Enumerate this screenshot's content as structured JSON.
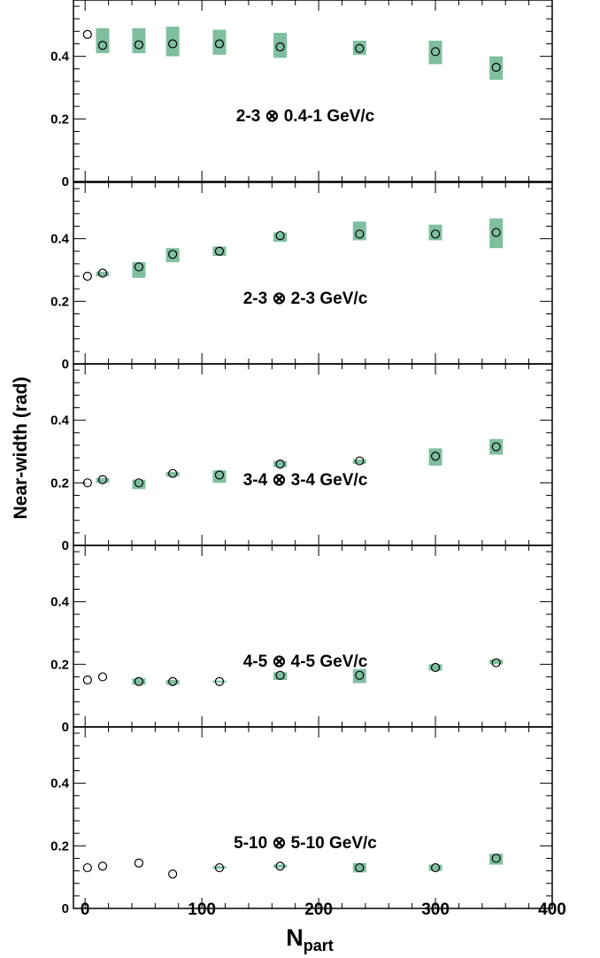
{
  "chart_data": [
    {
      "type": "scatter",
      "panel_label": "2-3 ⊗ 0.4-1 GeV/c",
      "ylim": [
        0,
        0.58
      ],
      "yticks": [
        "0",
        "0.2",
        "0.4"
      ],
      "points": [
        {
          "x": 2,
          "y": 0.47
        },
        {
          "x": 15,
          "y": 0.435,
          "sys_low": 0.41,
          "sys_high": 0.49
        },
        {
          "x": 46,
          "y": 0.437,
          "sys_low": 0.41,
          "sys_high": 0.49
        },
        {
          "x": 75,
          "y": 0.44,
          "sys_low": 0.4,
          "sys_high": 0.495
        },
        {
          "x": 115,
          "y": 0.44,
          "sys_low": 0.405,
          "sys_high": 0.485
        },
        {
          "x": 167,
          "y": 0.43,
          "sys_low": 0.395,
          "sys_high": 0.475
        },
        {
          "x": 235,
          "y": 0.425,
          "sys_low": 0.405,
          "sys_high": 0.45
        },
        {
          "x": 300,
          "y": 0.415,
          "sys_low": 0.375,
          "sys_high": 0.45
        },
        {
          "x": 352,
          "y": 0.365,
          "sys_low": 0.325,
          "sys_high": 0.4
        }
      ]
    },
    {
      "type": "scatter",
      "panel_label": "2-3 ⊗ 2-3 GeV/c",
      "ylim": [
        0,
        0.58
      ],
      "yticks": [
        "0",
        "0.2",
        "0.4"
      ],
      "points": [
        {
          "x": 2,
          "y": 0.28
        },
        {
          "x": 15,
          "y": 0.29,
          "sys_low": 0.28,
          "sys_high": 0.295
        },
        {
          "x": 46,
          "y": 0.31,
          "sys_low": 0.275,
          "sys_high": 0.325
        },
        {
          "x": 75,
          "y": 0.35,
          "sys_low": 0.325,
          "sys_high": 0.37
        },
        {
          "x": 115,
          "y": 0.36,
          "sys_low": 0.345,
          "sys_high": 0.375
        },
        {
          "x": 167,
          "y": 0.41,
          "sys_low": 0.39,
          "sys_high": 0.42
        },
        {
          "x": 235,
          "y": 0.415,
          "sys_low": 0.395,
          "sys_high": 0.455
        },
        {
          "x": 300,
          "y": 0.415,
          "sys_low": 0.395,
          "sys_high": 0.445
        },
        {
          "x": 352,
          "y": 0.42,
          "sys_low": 0.37,
          "sys_high": 0.465
        }
      ]
    },
    {
      "type": "scatter",
      "panel_label": "3-4 ⊗ 3-4 GeV/c",
      "ylim": [
        0,
        0.58
      ],
      "yticks": [
        "0",
        "0.2",
        "0.4"
      ],
      "points": [
        {
          "x": 2,
          "y": 0.2
        },
        {
          "x": 15,
          "y": 0.21,
          "sys_low": 0.2,
          "sys_high": 0.215
        },
        {
          "x": 46,
          "y": 0.2,
          "sys_low": 0.18,
          "sys_high": 0.21
        },
        {
          "x": 75,
          "y": 0.23,
          "sys_low": 0.22,
          "sys_high": 0.235
        },
        {
          "x": 115,
          "y": 0.225,
          "sys_low": 0.2,
          "sys_high": 0.24
        },
        {
          "x": 167,
          "y": 0.26,
          "sys_low": 0.25,
          "sys_high": 0.27
        },
        {
          "x": 235,
          "y": 0.27,
          "sys_low": 0.26,
          "sys_high": 0.275
        },
        {
          "x": 300,
          "y": 0.285,
          "sys_low": 0.255,
          "sys_high": 0.31
        },
        {
          "x": 352,
          "y": 0.315,
          "sys_low": 0.29,
          "sys_high": 0.34
        }
      ]
    },
    {
      "type": "scatter",
      "panel_label": "4-5 ⊗ 4-5 GeV/c",
      "ylim": [
        0,
        0.58
      ],
      "yticks": [
        "0",
        "0.2",
        "0.4"
      ],
      "points": [
        {
          "x": 2,
          "y": 0.15
        },
        {
          "x": 15,
          "y": 0.16
        },
        {
          "x": 46,
          "y": 0.145,
          "sys_low": 0.135,
          "sys_high": 0.155
        },
        {
          "x": 75,
          "y": 0.145,
          "sys_low": 0.135,
          "sys_high": 0.15
        },
        {
          "x": 115,
          "y": 0.145,
          "sys_low": 0.142,
          "sys_high": 0.148
        },
        {
          "x": 167,
          "y": 0.165,
          "sys_low": 0.15,
          "sys_high": 0.175
        },
        {
          "x": 235,
          "y": 0.165,
          "sys_low": 0.14,
          "sys_high": 0.185
        },
        {
          "x": 300,
          "y": 0.19,
          "sys_low": 0.18,
          "sys_high": 0.2
        },
        {
          "x": 352,
          "y": 0.205,
          "sys_low": 0.2,
          "sys_high": 0.215
        }
      ]
    },
    {
      "type": "scatter",
      "panel_label": "5-10 ⊗ 5-10 GeV/c",
      "ylim": [
        0,
        0.58
      ],
      "yticks": [
        "0",
        "0.2",
        "0.4"
      ],
      "points": [
        {
          "x": 2,
          "y": 0.13
        },
        {
          "x": 15,
          "y": 0.135
        },
        {
          "x": 46,
          "y": 0.145
        },
        {
          "x": 75,
          "y": 0.11
        },
        {
          "x": 115,
          "y": 0.13,
          "sys_low": 0.127,
          "sys_high": 0.135
        },
        {
          "x": 167,
          "y": 0.135,
          "sys_low": 0.13,
          "sys_high": 0.14
        },
        {
          "x": 235,
          "y": 0.13,
          "sys_low": 0.115,
          "sys_high": 0.145
        },
        {
          "x": 300,
          "y": 0.13,
          "sys_low": 0.12,
          "sys_high": 0.14
        },
        {
          "x": 352,
          "y": 0.16,
          "sys_low": 0.14,
          "sys_high": 0.175
        }
      ]
    }
  ],
  "x_axis": {
    "xlim": [
      -10,
      400
    ],
    "ticks": [
      0,
      100,
      200,
      300,
      400
    ],
    "tick_labels": [
      "0",
      "100",
      "200",
      "300",
      "400"
    ],
    "label_main": "N",
    "label_sub": "part"
  },
  "y_axis": {
    "label": "Near-width (rad)"
  },
  "colors": {
    "sys_box": "#7fbf9f",
    "marker": "#000000",
    "axis": "#000000",
    "background": "#ffffff"
  }
}
